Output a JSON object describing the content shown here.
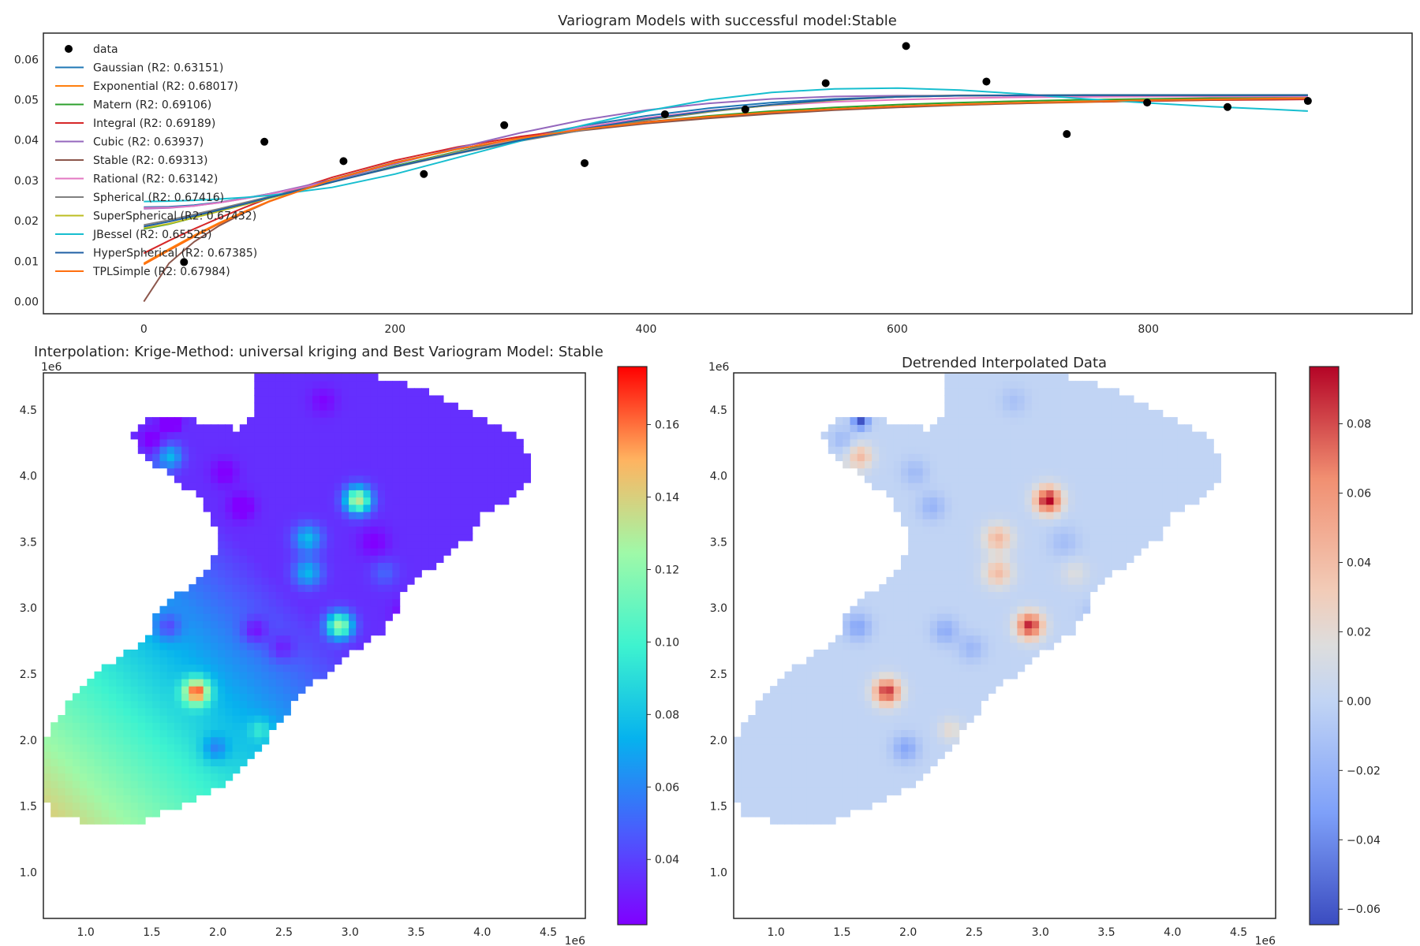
{
  "chart_data": [
    {
      "type": "line",
      "title": "Variogram Models with successful model:Stable",
      "xlim": [
        -80,
        1010
      ],
      "ylim": [
        -0.003,
        0.0665
      ],
      "x_ticks": [
        0,
        200,
        400,
        600,
        800
      ],
      "x_tick_labels": [
        "0",
        "200",
        "400",
        "600",
        "800"
      ],
      "y_ticks": [
        0,
        0.01,
        0.02,
        0.03,
        0.04,
        0.05,
        0.06
      ],
      "y_tick_labels": [
        "0.00",
        "0.01",
        "0.02",
        "0.03",
        "0.04",
        "0.05",
        "0.06"
      ],
      "grid": false,
      "legend_position": "upper-left",
      "points": {
        "name": "data",
        "color": "#000000",
        "x": [
          32,
          96,
          159,
          223,
          287,
          351,
          415,
          479,
          543,
          607,
          671,
          735,
          799,
          863,
          927
        ],
        "y": [
          0.0098,
          0.0396,
          0.0348,
          0.0316,
          0.0437,
          0.0343,
          0.0464,
          0.0476,
          0.0541,
          0.0633,
          0.0545,
          0.0415,
          0.0493,
          0.0482,
          0.0497
        ]
      },
      "x": [
        0,
        20,
        40,
        60,
        80,
        100,
        150,
        200,
        250,
        300,
        350,
        400,
        450,
        500,
        550,
        600,
        650,
        700,
        750,
        800,
        850,
        900,
        927
      ],
      "series": [
        {
          "name": "Gaussian (R2: 0.63151)",
          "color": "#1f77b4",
          "values": [
            0.0234,
            0.0235,
            0.0239,
            0.0246,
            0.0256,
            0.0267,
            0.0299,
            0.0335,
            0.0372,
            0.0406,
            0.0436,
            0.046,
            0.0479,
            0.0493,
            0.0502,
            0.0507,
            0.051,
            0.0511,
            0.0512,
            0.0512,
            0.0512,
            0.0512,
            0.0512
          ]
        },
        {
          "name": "Exponential (R2: 0.68017)",
          "color": "#ff7f0e",
          "values": [
            0.0095,
            0.013,
            0.0164,
            0.0195,
            0.0223,
            0.0249,
            0.0302,
            0.0344,
            0.0378,
            0.0405,
            0.0426,
            0.0443,
            0.0456,
            0.0467,
            0.0475,
            0.0482,
            0.0487,
            0.0491,
            0.0494,
            0.0497,
            0.0499,
            0.0501,
            0.0502
          ]
        },
        {
          "name": "Matern (R2: 0.69106)",
          "color": "#2ca02c",
          "values": [
            0.018,
            0.0192,
            0.0208,
            0.0224,
            0.024,
            0.0256,
            0.0296,
            0.0336,
            0.0372,
            0.0402,
            0.0426,
            0.0445,
            0.046,
            0.0472,
            0.0481,
            0.0488,
            0.0493,
            0.0497,
            0.05,
            0.0502,
            0.0504,
            0.0505,
            0.0506
          ]
        },
        {
          "name": "Integral (R2: 0.69189)",
          "color": "#d62728",
          "values": [
            0.012,
            0.0151,
            0.018,
            0.0207,
            0.0233,
            0.0257,
            0.0308,
            0.035,
            0.0383,
            0.0409,
            0.0429,
            0.0445,
            0.0458,
            0.0468,
            0.0476,
            0.0483,
            0.0488,
            0.0492,
            0.0495,
            0.0497,
            0.0499,
            0.05,
            0.0501
          ]
        },
        {
          "name": "Cubic (R2: 0.63937)",
          "color": "#9467bd",
          "values": [
            0.023,
            0.0232,
            0.0237,
            0.0245,
            0.0255,
            0.0267,
            0.0302,
            0.0341,
            0.0381,
            0.0418,
            0.045,
            0.0474,
            0.0491,
            0.0502,
            0.0508,
            0.051,
            0.051,
            0.051,
            0.051,
            0.051,
            0.051,
            0.051,
            0.051
          ]
        },
        {
          "name": "Stable (R2: 0.69313)",
          "color": "#8c564b",
          "values": [
            0.0,
            0.0095,
            0.0148,
            0.0188,
            0.022,
            0.0248,
            0.0303,
            0.0345,
            0.0378,
            0.0404,
            0.0424,
            0.0441,
            0.0454,
            0.0465,
            0.0474,
            0.0481,
            0.0487,
            0.0491,
            0.0495,
            0.0498,
            0.05,
            0.0502,
            0.0503
          ]
        },
        {
          "name": "Rational (R2: 0.63142)",
          "color": "#e377c2",
          "values": [
            0.0232,
            0.0233,
            0.0237,
            0.0245,
            0.0255,
            0.0266,
            0.0298,
            0.0334,
            0.037,
            0.0403,
            0.0432,
            0.0455,
            0.0473,
            0.0486,
            0.0495,
            0.05,
            0.0504,
            0.0506,
            0.0507,
            0.0508,
            0.0508,
            0.0508,
            0.0508
          ]
        },
        {
          "name": "Spherical (R2: 0.67416)",
          "color": "#7f7f7f",
          "values": [
            0.019,
            0.0202,
            0.0216,
            0.023,
            0.0245,
            0.026,
            0.0297,
            0.0333,
            0.0367,
            0.0398,
            0.0425,
            0.0449,
            0.047,
            0.0487,
            0.05,
            0.0508,
            0.0511,
            0.0511,
            0.0511,
            0.0511,
            0.0511,
            0.0511,
            0.0511
          ]
        },
        {
          "name": "SuperSpherical (R2: 0.67432)",
          "color": "#bcbd22",
          "values": [
            0.0182,
            0.0193,
            0.0208,
            0.0224,
            0.024,
            0.0256,
            0.0296,
            0.0334,
            0.0369,
            0.0401,
            0.0428,
            0.0451,
            0.0471,
            0.0487,
            0.0499,
            0.0507,
            0.051,
            0.0511,
            0.0511,
            0.0511,
            0.0511,
            0.0511,
            0.0511
          ]
        },
        {
          "name": "JBessel (R2: 0.65525)",
          "color": "#17becf",
          "values": [
            0.0248,
            0.0249,
            0.0251,
            0.0254,
            0.0258,
            0.0263,
            0.0283,
            0.0316,
            0.0357,
            0.0398,
            0.0437,
            0.0472,
            0.05,
            0.0518,
            0.0527,
            0.0529,
            0.0524,
            0.0514,
            0.0502,
            0.0492,
            0.0483,
            0.0476,
            0.0472
          ]
        },
        {
          "name": "HyperSpherical (R2: 0.67385)",
          "color": "#1f5fa4",
          "values": [
            0.0186,
            0.0198,
            0.0212,
            0.0227,
            0.0242,
            0.0258,
            0.0296,
            0.0334,
            0.0368,
            0.04,
            0.0428,
            0.0452,
            0.0472,
            0.0488,
            0.05,
            0.0507,
            0.051,
            0.0511,
            0.0511,
            0.0511,
            0.0511,
            0.0511,
            0.0511
          ]
        },
        {
          "name": "TPLSimple (R2: 0.67984)",
          "color": "#ff6f0e",
          "values": [
            0.0092,
            0.0127,
            0.0161,
            0.0193,
            0.0222,
            0.0248,
            0.0302,
            0.0344,
            0.0378,
            0.0405,
            0.0427,
            0.0444,
            0.0458,
            0.0469,
            0.0477,
            0.0484,
            0.0489,
            0.0493,
            0.0496,
            0.0499,
            0.0501,
            0.0503,
            0.0504
          ]
        }
      ]
    },
    {
      "type": "heatmap",
      "title": "Interpolation: Krige-Method: universal kriging and Best Variogram Model: Stable",
      "colormap": "rainbow",
      "xlim": [
        0.68,
        4.78
      ],
      "ylim": [
        0.65,
        4.78
      ],
      "x_offset_label": "1e6",
      "y_offset_label": "1e6",
      "x_ticks": [
        1.0,
        1.5,
        2.0,
        2.5,
        3.0,
        3.5,
        4.0,
        4.5
      ],
      "x_tick_labels": [
        "1.0",
        "1.5",
        "2.0",
        "2.5",
        "3.0",
        "3.5",
        "4.0",
        "4.5"
      ],
      "y_ticks": [
        1.0,
        1.5,
        2.0,
        2.5,
        3.0,
        3.5,
        4.0,
        4.5
      ],
      "y_tick_labels": [
        "1.0",
        "1.5",
        "2.0",
        "2.5",
        "3.0",
        "3.5",
        "4.0",
        "4.5"
      ],
      "colorbar": {
        "min": 0.022,
        "max": 0.176,
        "ticks": [
          0.04,
          0.06,
          0.08,
          0.1,
          0.12,
          0.14,
          0.16
        ],
        "tick_labels": [
          "0.04",
          "0.06",
          "0.08",
          "0.10",
          "0.12",
          "0.14",
          "0.16"
        ]
      }
    },
    {
      "type": "heatmap",
      "title": "Detrended Interpolated Data",
      "colormap": "coolwarm",
      "xlim": [
        0.68,
        4.78
      ],
      "ylim": [
        0.65,
        4.78
      ],
      "x_offset_label": "1e6",
      "y_offset_label": "1e6",
      "x_ticks": [
        1.0,
        1.5,
        2.0,
        2.5,
        3.0,
        3.5,
        4.0,
        4.5
      ],
      "x_tick_labels": [
        "1.0",
        "1.5",
        "2.0",
        "2.5",
        "3.0",
        "3.5",
        "4.0",
        "4.5"
      ],
      "y_ticks": [
        1.0,
        1.5,
        2.0,
        2.5,
        3.0,
        3.5,
        4.0,
        4.5
      ],
      "y_tick_labels": [
        "1.0",
        "1.5",
        "2.0",
        "2.5",
        "3.0",
        "3.5",
        "4.0",
        "4.5"
      ],
      "colorbar": {
        "min": -0.0645,
        "max": 0.0965,
        "ticks": [
          -0.06,
          -0.04,
          -0.02,
          0.0,
          0.02,
          0.04,
          0.06,
          0.08
        ],
        "tick_labels": [
          "−0.06",
          "−0.04",
          "−0.02",
          "0.00",
          "0.02",
          "0.04",
          "0.06",
          "0.08"
        ]
      }
    }
  ],
  "map_field": {
    "region": [
      [
        0.68,
        1.55
      ],
      [
        0.68,
        1.95
      ],
      [
        0.78,
        2.15
      ],
      [
        0.9,
        2.32
      ],
      [
        1.05,
        2.48
      ],
      [
        1.25,
        2.62
      ],
      [
        1.45,
        2.75
      ],
      [
        1.55,
        2.98
      ],
      [
        1.72,
        3.12
      ],
      [
        1.9,
        3.28
      ],
      [
        2.0,
        3.48
      ],
      [
        1.95,
        3.72
      ],
      [
        1.78,
        3.9
      ],
      [
        1.58,
        4.05
      ],
      [
        1.43,
        4.15
      ],
      [
        1.35,
        4.32
      ],
      [
        1.45,
        4.43
      ],
      [
        1.78,
        4.43
      ],
      [
        2.15,
        4.36
      ],
      [
        2.28,
        4.5
      ],
      [
        2.28,
        4.75
      ],
      [
        3.15,
        4.77
      ],
      [
        3.55,
        4.65
      ],
      [
        3.95,
        4.45
      ],
      [
        4.25,
        4.3
      ],
      [
        4.38,
        4.12
      ],
      [
        4.38,
        4.0
      ],
      [
        4.22,
        3.82
      ],
      [
        4.0,
        3.7
      ],
      [
        3.92,
        3.55
      ],
      [
        3.62,
        3.3
      ],
      [
        3.4,
        3.15
      ],
      [
        3.35,
        2.95
      ],
      [
        3.22,
        2.8
      ],
      [
        2.98,
        2.65
      ],
      [
        2.75,
        2.45
      ],
      [
        2.55,
        2.25
      ],
      [
        2.3,
        1.92
      ],
      [
        2.02,
        1.65
      ],
      [
        1.72,
        1.5
      ],
      [
        1.4,
        1.38
      ],
      [
        1.0,
        1.38
      ],
      [
        0.78,
        1.42
      ]
    ],
    "trend": {
      "base": 0.13,
      "gx": -0.03,
      "gy": -0.03,
      "cx": 1.0,
      "cy": 1.5,
      "min": 0.035
    },
    "anomalies": [
      {
        "x": 1.84,
        "y": 2.37,
        "amp": 0.088,
        "sigma": 0.07
      },
      {
        "x": 2.92,
        "y": 2.87,
        "amp": 0.09,
        "sigma": 0.07
      },
      {
        "x": 3.06,
        "y": 3.82,
        "amp": 0.098,
        "sigma": 0.07
      },
      {
        "x": 2.68,
        "y": 3.53,
        "amp": 0.042,
        "sigma": 0.075
      },
      {
        "x": 2.68,
        "y": 3.27,
        "amp": 0.04,
        "sigma": 0.075
      },
      {
        "x": 1.64,
        "y": 4.15,
        "amp": 0.04,
        "sigma": 0.065
      },
      {
        "x": 1.5,
        "y": 3.98,
        "amp": 0.018,
        "sigma": 0.08
      },
      {
        "x": 2.32,
        "y": 2.08,
        "amp": 0.022,
        "sigma": 0.06
      },
      {
        "x": 3.26,
        "y": 3.27,
        "amp": 0.015,
        "sigma": 0.07
      },
      {
        "x": 1.62,
        "y": 2.86,
        "amp": -0.028,
        "sigma": 0.07
      },
      {
        "x": 1.98,
        "y": 1.94,
        "amp": -0.028,
        "sigma": 0.07
      },
      {
        "x": 2.28,
        "y": 2.83,
        "amp": -0.024,
        "sigma": 0.07
      },
      {
        "x": 2.48,
        "y": 2.7,
        "amp": -0.018,
        "sigma": 0.07
      },
      {
        "x": 2.18,
        "y": 3.77,
        "amp": -0.02,
        "sigma": 0.07
      },
      {
        "x": 2.05,
        "y": 4.03,
        "amp": -0.016,
        "sigma": 0.07
      },
      {
        "x": 3.42,
        "y": 2.96,
        "amp": -0.014,
        "sigma": 0.07
      },
      {
        "x": 3.18,
        "y": 3.5,
        "amp": -0.014,
        "sigma": 0.08
      },
      {
        "x": 2.8,
        "y": 4.57,
        "amp": -0.012,
        "sigma": 0.07
      },
      {
        "x": 1.5,
        "y": 4.28,
        "amp": -0.016,
        "sigma": 0.06
      },
      {
        "x": 1.64,
        "y": 4.42,
        "amp": -0.062,
        "sigma": 0.045
      }
    ]
  }
}
